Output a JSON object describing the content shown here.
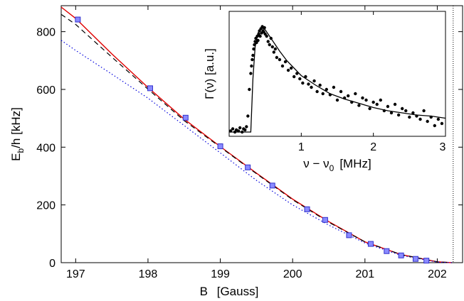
{
  "chart_data": [
    {
      "type": "line",
      "xlabel_main": "B",
      "xlabel_unit": "[Gauss]",
      "ylabel_main": "E",
      "ylabel_sub": "b",
      "ylabel_rest": "/h  [kHz]",
      "xlim": [
        196.8,
        202.35
      ],
      "ylim": [
        0,
        890
      ],
      "xticks": [
        197,
        198,
        199,
        200,
        201,
        202
      ],
      "yticks": [
        0,
        200,
        400,
        600,
        800
      ],
      "vline_x": 202.22,
      "markers": {
        "x": [
          197.03,
          198.03,
          198.52,
          199.0,
          199.38,
          199.72,
          200.2,
          200.45,
          200.78,
          201.08,
          201.3,
          201.5,
          201.7,
          201.85
        ],
        "y": [
          842,
          604,
          502,
          403,
          330,
          267,
          185,
          148,
          95,
          65,
          40,
          25,
          13,
          7
        ],
        "color": "#3333cc",
        "fill": "#8a8aff"
      },
      "series": [
        {
          "style": "solid",
          "color": "#e00000",
          "x": [
            196.8,
            197.0,
            197.5,
            198.0,
            198.5,
            199.0,
            199.5,
            200.0,
            200.5,
            201.0,
            201.5,
            202.0,
            202.2
          ],
          "y": [
            885,
            846,
            723,
            607,
            497,
            402,
            310,
            220,
            142,
            72,
            28,
            3,
            0
          ]
        },
        {
          "style": "dashed",
          "color": "#000000",
          "x": [
            196.8,
            197.0,
            197.5,
            198.0,
            198.5,
            199.0,
            199.5,
            200.0,
            200.5,
            201.0,
            201.5,
            202.0,
            202.2
          ],
          "y": [
            860,
            825,
            712,
            601,
            492,
            400,
            308,
            218,
            140,
            72,
            28,
            3,
            0
          ]
        },
        {
          "style": "dotted",
          "color": "#0000dd",
          "x": [
            196.8,
            197.0,
            197.5,
            198.0,
            198.5,
            199.0,
            199.5,
            200.0,
            200.5,
            201.0,
            201.5,
            202.0,
            202.2
          ],
          "y": [
            770,
            735,
            653,
            570,
            475,
            380,
            285,
            200,
            130,
            68,
            25,
            2,
            0
          ]
        }
      ]
    },
    {
      "type": "scatter",
      "xlabel": "ν − ν",
      "xlabel_sub": "0",
      "xlabel_unit": "[MHz]",
      "ylabel": "Γ(ν)  [a.u.]",
      "xlim": [
        0.0,
        3.0
      ],
      "ylim": [
        0,
        1.0
      ],
      "xticks": [
        1,
        2,
        3
      ],
      "points": {
        "x": [
          0.02,
          0.05,
          0.08,
          0.1,
          0.13,
          0.15,
          0.18,
          0.2,
          0.22,
          0.24,
          0.26,
          0.28,
          0.3,
          0.31,
          0.32,
          0.33,
          0.34,
          0.35,
          0.36,
          0.37,
          0.38,
          0.39,
          0.4,
          0.41,
          0.42,
          0.43,
          0.44,
          0.45,
          0.46,
          0.47,
          0.48,
          0.49,
          0.5,
          0.52,
          0.54,
          0.56,
          0.58,
          0.6,
          0.62,
          0.64,
          0.66,
          0.7,
          0.74,
          0.78,
          0.82,
          0.86,
          0.9,
          0.94,
          0.98,
          1.02,
          1.06,
          1.1,
          1.14,
          1.18,
          1.22,
          1.26,
          1.3,
          1.35,
          1.4,
          1.45,
          1.5,
          1.55,
          1.6,
          1.65,
          1.7,
          1.75,
          1.8,
          1.85,
          1.9,
          1.95,
          2.0,
          2.05,
          2.1,
          2.15,
          2.2,
          2.25,
          2.3,
          2.35,
          2.4,
          2.45,
          2.5,
          2.55,
          2.6,
          2.65,
          2.7,
          2.75,
          2.8,
          2.85,
          2.9,
          2.95
        ],
        "y": [
          0.01,
          0.03,
          0.0,
          0.02,
          0.01,
          0.04,
          0.0,
          0.03,
          0.02,
          0.05,
          0.15,
          0.4,
          0.55,
          0.62,
          0.68,
          0.72,
          0.78,
          0.82,
          0.85,
          0.88,
          0.84,
          0.9,
          0.86,
          0.92,
          0.95,
          0.9,
          0.97,
          0.93,
          0.99,
          0.95,
          0.94,
          0.98,
          0.92,
          0.9,
          0.85,
          0.82,
          0.88,
          0.8,
          0.75,
          0.78,
          0.7,
          0.68,
          0.62,
          0.66,
          0.58,
          0.6,
          0.52,
          0.55,
          0.5,
          0.46,
          0.52,
          0.45,
          0.42,
          0.48,
          0.38,
          0.44,
          0.36,
          0.4,
          0.35,
          0.42,
          0.3,
          0.38,
          0.32,
          0.34,
          0.28,
          0.36,
          0.25,
          0.32,
          0.3,
          0.22,
          0.28,
          0.26,
          0.3,
          0.2,
          0.24,
          0.18,
          0.26,
          0.16,
          0.22,
          0.2,
          0.14,
          0.18,
          0.15,
          0.12,
          0.2,
          0.1,
          0.14,
          0.06,
          0.12,
          0.08
        ]
      },
      "fit": {
        "x": [
          0.0,
          0.2,
          0.3,
          0.33,
          0.36,
          0.4,
          0.45,
          0.5,
          0.6,
          0.7,
          0.8,
          1.0,
          1.2,
          1.4,
          1.6,
          1.8,
          2.0,
          2.2,
          2.4,
          2.6,
          2.8,
          3.0
        ],
        "y": [
          0.0,
          0.0,
          0.0,
          0.5,
          0.8,
          0.93,
          0.98,
          0.96,
          0.86,
          0.76,
          0.67,
          0.53,
          0.44,
          0.36,
          0.31,
          0.27,
          0.23,
          0.2,
          0.18,
          0.16,
          0.15,
          0.13
        ]
      }
    }
  ]
}
